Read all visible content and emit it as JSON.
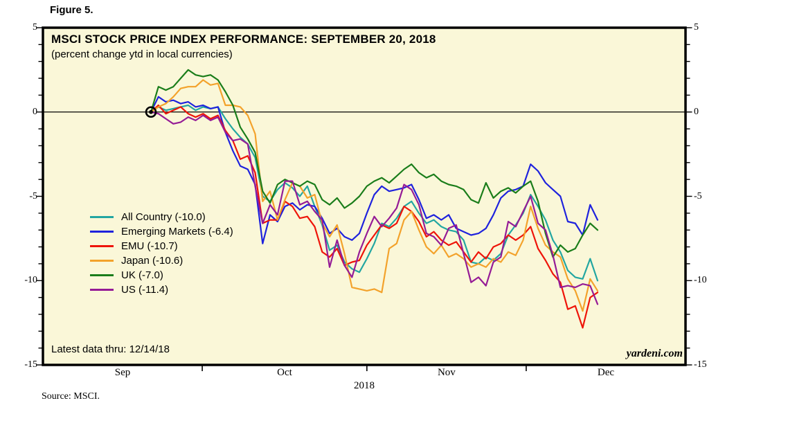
{
  "figure_label": "Figure 5.",
  "chart": {
    "title": "MSCI STOCK PRICE INDEX PERFORMANCE: SEPTEMBER 20, 2018",
    "subtitle": "(percent change ytd in local currencies)",
    "note": "Latest data thru: 12/14/18",
    "watermark": "yardeni.com",
    "source": "Source: MSCI.",
    "year_label": "2018",
    "background_color": "#FAF7D8",
    "zero_line_color": "#000000"
  },
  "chart_data": {
    "type": "line",
    "x": [
      "9/20",
      "9/21",
      "9/24",
      "9/25",
      "9/26",
      "9/27",
      "9/28",
      "10/1",
      "10/2",
      "10/3",
      "10/4",
      "10/5",
      "10/8",
      "10/9",
      "10/10",
      "10/11",
      "10/12",
      "10/15",
      "10/16",
      "10/17",
      "10/18",
      "10/19",
      "10/22",
      "10/23",
      "10/24",
      "10/25",
      "10/26",
      "10/29",
      "10/30",
      "10/31",
      "11/1",
      "11/2",
      "11/5",
      "11/6",
      "11/7",
      "11/8",
      "11/9",
      "11/12",
      "11/13",
      "11/14",
      "11/15",
      "11/16",
      "11/19",
      "11/20",
      "11/21",
      "11/23",
      "11/26",
      "11/27",
      "11/28",
      "11/29",
      "11/30",
      "12/3",
      "12/4",
      "12/5",
      "12/6",
      "12/7",
      "12/10",
      "12/11",
      "12/12",
      "12/13",
      "12/14"
    ],
    "x_axis": {
      "months": [
        "Sep",
        "Oct",
        "Nov",
        "Dec"
      ],
      "year": "2018"
    },
    "y_axis": {
      "min": -15,
      "max": 5,
      "major_ticks": [
        5,
        0,
        -5,
        -10,
        -15
      ],
      "minor_step": 1
    },
    "start_marker": {
      "date": "9/20",
      "value": 0
    },
    "series": [
      {
        "name": "All Country",
        "final_value": -10.0,
        "legend_label": "All Country (-10.0)",
        "color": "#22A6A1",
        "values": [
          0.0,
          0.3,
          0.1,
          0.2,
          0.3,
          0.4,
          0.1,
          0.3,
          0.2,
          0.3,
          -0.4,
          -1.0,
          -1.5,
          -1.9,
          -2.7,
          -5.0,
          -5.3,
          -4.6,
          -4.2,
          -4.5,
          -5.0,
          -4.4,
          -5.6,
          -6.7,
          -8.2,
          -7.9,
          -8.9,
          -9.3,
          -9.5,
          -8.7,
          -7.8,
          -6.6,
          -6.8,
          -6.3,
          -5.6,
          -5.3,
          -6.0,
          -6.6,
          -6.4,
          -6.8,
          -7.0,
          -7.1,
          -7.6,
          -8.9,
          -9.0,
          -8.6,
          -8.8,
          -8.4,
          -7.3,
          -6.7,
          -6.0,
          -4.9,
          -5.6,
          -6.4,
          -7.6,
          -8.3,
          -9.4,
          -9.8,
          -9.9,
          -8.7,
          -10.0
        ]
      },
      {
        "name": "Emerging Markets",
        "final_value": -6.4,
        "legend_label": "Emerging Markets (-6.4)",
        "color": "#1E22DD",
        "values": [
          0.0,
          0.9,
          0.6,
          0.7,
          0.5,
          0.6,
          0.3,
          0.4,
          0.2,
          0.3,
          -1.2,
          -2.3,
          -3.2,
          -3.4,
          -4.3,
          -7.8,
          -6.1,
          -6.5,
          -5.6,
          -5.4,
          -5.8,
          -5.5,
          -5.6,
          -6.3,
          -7.2,
          -6.9,
          -7.4,
          -7.6,
          -7.2,
          -6.0,
          -4.9,
          -4.4,
          -4.7,
          -4.6,
          -4.5,
          -4.3,
          -5.2,
          -6.3,
          -6.1,
          -6.4,
          -6.1,
          -6.9,
          -7.1,
          -7.3,
          -7.2,
          -6.9,
          -6.1,
          -5.1,
          -4.7,
          -4.6,
          -4.4,
          -3.1,
          -3.5,
          -4.2,
          -4.6,
          -5.0,
          -6.5,
          -6.6,
          -7.3,
          -5.5,
          -6.4
        ]
      },
      {
        "name": "EMU",
        "final_value": -10.7,
        "legend_label": "EMU (-10.7)",
        "color": "#EE1409",
        "values": [
          0.0,
          0.4,
          -0.1,
          0.1,
          0.3,
          -0.1,
          -0.3,
          -0.1,
          -0.4,
          -0.2,
          -1.1,
          -1.7,
          -2.8,
          -2.6,
          -3.6,
          -6.6,
          -6.4,
          -6.4,
          -5.3,
          -5.6,
          -6.3,
          -6.2,
          -6.8,
          -8.3,
          -8.6,
          -8.1,
          -9.1,
          -8.9,
          -8.8,
          -7.9,
          -7.3,
          -6.7,
          -6.9,
          -6.6,
          -5.6,
          -5.9,
          -6.5,
          -7.4,
          -7.1,
          -7.6,
          -7.9,
          -7.7,
          -8.3,
          -8.9,
          -8.3,
          -8.7,
          -8.0,
          -7.8,
          -7.3,
          -7.6,
          -7.3,
          -6.8,
          -8.1,
          -8.8,
          -9.6,
          -10.1,
          -11.7,
          -11.5,
          -12.8,
          -11.0,
          -10.7
        ]
      },
      {
        "name": "Japan",
        "final_value": -10.6,
        "legend_label": "Japan (-10.6)",
        "color": "#F3A22B",
        "values": [
          0.0,
          0.3,
          0.5,
          0.9,
          1.4,
          1.5,
          1.5,
          1.9,
          1.6,
          1.7,
          0.4,
          0.4,
          0.3,
          -0.2,
          -1.3,
          -5.3,
          -4.7,
          -6.4,
          -5.2,
          -4.2,
          -4.4,
          -5.1,
          -4.9,
          -6.6,
          -7.4,
          -6.7,
          -8.4,
          -10.4,
          -10.5,
          -10.6,
          -10.5,
          -10.7,
          -8.1,
          -7.8,
          -6.4,
          -5.9,
          -7.0,
          -8.0,
          -8.4,
          -7.9,
          -8.6,
          -8.4,
          -8.7,
          -9.2,
          -9.0,
          -9.2,
          -8.7,
          -8.9,
          -8.3,
          -8.5,
          -7.6,
          -5.6,
          -6.9,
          -7.9,
          -8.3,
          -8.6,
          -9.9,
          -10.6,
          -11.8,
          -9.9,
          -10.6
        ]
      },
      {
        "name": "UK",
        "final_value": -7.0,
        "legend_label": "UK (-7.0)",
        "color": "#1A7D1A",
        "values": [
          0.0,
          1.5,
          1.3,
          1.5,
          2.0,
          2.5,
          2.2,
          2.1,
          2.2,
          1.9,
          1.2,
          0.4,
          -0.9,
          -1.6,
          -2.4,
          -4.7,
          -5.4,
          -4.3,
          -4.0,
          -4.2,
          -4.4,
          -4.1,
          -4.3,
          -5.2,
          -5.5,
          -5.1,
          -5.7,
          -5.4,
          -5.0,
          -4.4,
          -4.1,
          -3.9,
          -4.2,
          -3.8,
          -3.4,
          -3.1,
          -3.6,
          -3.9,
          -3.7,
          -4.1,
          -4.3,
          -4.4,
          -4.6,
          -5.2,
          -5.4,
          -4.2,
          -5.1,
          -4.7,
          -4.5,
          -4.8,
          -4.4,
          -4.1,
          -5.3,
          -7.2,
          -8.6,
          -7.9,
          -8.3,
          -8.1,
          -7.3,
          -6.6,
          -7.0
        ]
      },
      {
        "name": "US",
        "final_value": -11.4,
        "legend_label": "US (-11.4)",
        "color": "#951B96",
        "values": [
          0.0,
          -0.1,
          -0.4,
          -0.7,
          -0.6,
          -0.3,
          -0.5,
          -0.2,
          -0.5,
          -0.3,
          -1.2,
          -1.7,
          -1.6,
          -1.9,
          -4.4,
          -6.6,
          -5.5,
          -6.1,
          -4.1,
          -4.1,
          -5.5,
          -5.3,
          -5.9,
          -6.4,
          -9.2,
          -7.6,
          -9.1,
          -9.8,
          -8.3,
          -7.2,
          -6.2,
          -6.8,
          -6.3,
          -5.7,
          -4.3,
          -4.6,
          -5.5,
          -7.2,
          -7.4,
          -7.9,
          -6.9,
          -6.7,
          -8.4,
          -10.1,
          -9.8,
          -10.3,
          -8.9,
          -8.6,
          -6.5,
          -6.8,
          -5.9,
          -5.0,
          -6.6,
          -7.0,
          -8.5,
          -10.4,
          -10.3,
          -10.4,
          -10.2,
          -10.3,
          -11.4
        ]
      }
    ]
  }
}
